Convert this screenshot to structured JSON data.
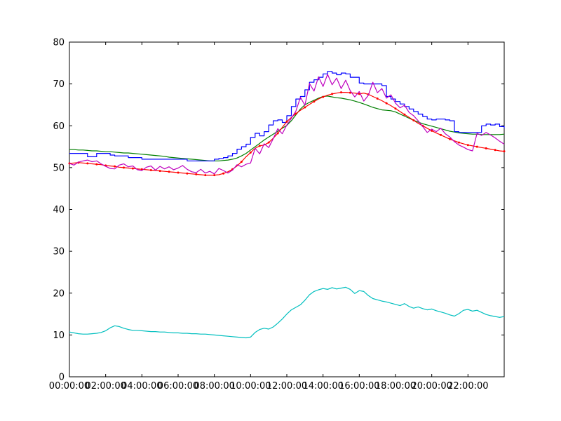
{
  "chart_data": {
    "type": "line",
    "title": "",
    "xlabel": "",
    "ylabel": "",
    "xlim": [
      0,
      24
    ],
    "ylim": [
      0,
      80
    ],
    "grid": false,
    "legend": "none",
    "x_unit": "time of day (HH:MM:SS)",
    "x_start": 0,
    "x_step": 0.25,
    "x_tick_labels": [
      "00:00:00",
      "02:00:00",
      "04:00:00",
      "06:00:00",
      "08:00:00",
      "10:00:00",
      "12:00:00",
      "14:00:00",
      "16:00:00",
      "18:00:00",
      "20:00:00",
      "22:00:00"
    ],
    "x_tick_hours": [
      0,
      2,
      4,
      6,
      8,
      10,
      12,
      14,
      16,
      18,
      20,
      22
    ],
    "x_tick_mark_hours": [
      0,
      2,
      4,
      6,
      8,
      10,
      12,
      14,
      16,
      18,
      20,
      22,
      24
    ],
    "y_ticks": [
      0,
      10,
      20,
      30,
      40,
      50,
      60,
      70,
      80
    ],
    "colors": {
      "axis": "#000000",
      "text": "#000000",
      "plot_bg": "#ffffff",
      "figure_bg": "#ffffff",
      "blue": "#0000ff",
      "green": "#007f00",
      "red": "#ff0000",
      "magenta": "#bf00bf",
      "cyan": "#00bfbf"
    },
    "series": [
      {
        "name": "smooth-green",
        "color": "#007f00",
        "style": "line",
        "values": [
          54.3,
          54.3,
          54.2,
          54.2,
          54.1,
          54.0,
          54.0,
          53.9,
          53.8,
          53.8,
          53.7,
          53.6,
          53.5,
          53.5,
          53.4,
          53.3,
          53.2,
          53.1,
          53.0,
          52.9,
          52.8,
          52.7,
          52.5,
          52.4,
          52.3,
          52.2,
          52.1,
          52.0,
          51.9,
          51.8,
          51.7,
          51.6,
          51.6,
          51.6,
          51.7,
          51.8,
          52.0,
          52.3,
          52.8,
          53.4,
          54.2,
          55.0,
          55.8,
          56.6,
          57.3,
          58.0,
          58.7,
          59.4,
          60.1,
          61.2,
          62.6,
          64.0,
          65.0,
          65.6,
          66.1,
          66.6,
          67.0,
          67.1,
          66.9,
          66.7,
          66.6,
          66.4,
          66.2,
          65.9,
          65.6,
          65.2,
          64.8,
          64.4,
          64.1,
          63.8,
          63.7,
          63.6,
          63.3,
          62.8,
          62.3,
          61.8,
          61.3,
          60.9,
          60.5,
          60.2,
          59.9,
          59.6,
          59.3,
          59.0,
          58.7,
          58.5,
          58.3,
          58.2,
          58.1,
          58.0,
          58.0,
          57.9,
          57.9,
          57.9,
          57.9,
          57.9,
          58.0
        ]
      },
      {
        "name": "stepped-blue",
        "color": "#0000ff",
        "style": "step",
        "values": [
          53.4,
          53.4,
          53.4,
          53.4,
          52.6,
          52.6,
          53.4,
          53.4,
          53.4,
          53.0,
          52.8,
          52.8,
          52.8,
          52.4,
          52.4,
          52.4,
          52.0,
          52.0,
          52.0,
          52.0,
          52.0,
          52.0,
          52.0,
          52.0,
          52.0,
          52.0,
          51.6,
          51.6,
          51.6,
          51.6,
          51.6,
          51.6,
          52.0,
          52.2,
          52.4,
          52.8,
          53.4,
          54.4,
          55.0,
          55.6,
          57.2,
          58.2,
          57.6,
          58.6,
          60.2,
          61.2,
          61.4,
          60.8,
          62.4,
          64.6,
          66.4,
          67.0,
          68.6,
          70.4,
          71.0,
          71.6,
          72.4,
          73.0,
          72.6,
          72.2,
          72.6,
          72.4,
          71.6,
          71.6,
          70.2,
          70.0,
          70.0,
          70.0,
          70.0,
          69.6,
          67.0,
          66.4,
          65.8,
          65.2,
          64.6,
          64.0,
          63.4,
          62.8,
          62.2,
          61.6,
          61.4,
          61.6,
          61.6,
          61.4,
          61.2,
          58.6,
          58.4,
          58.4,
          58.4,
          58.4,
          58.4,
          60.0,
          60.4,
          60.2,
          60.4,
          59.8,
          59.4
        ]
      },
      {
        "name": "smooth-red-markers",
        "color": "#ff0000",
        "style": "line",
        "marker": "dot",
        "values": [
          51.0,
          51.1,
          51.2,
          51.1,
          51.0,
          50.9,
          50.8,
          50.7,
          50.5,
          50.4,
          50.3,
          50.1,
          50.0,
          49.9,
          49.8,
          49.7,
          49.6,
          49.5,
          49.4,
          49.3,
          49.2,
          49.1,
          49.0,
          48.9,
          48.8,
          48.7,
          48.6,
          48.5,
          48.4,
          48.3,
          48.2,
          48.2,
          48.2,
          48.3,
          48.6,
          49.0,
          49.6,
          50.4,
          51.4,
          52.6,
          53.6,
          54.6,
          55.2,
          55.4,
          56.0,
          57.0,
          58.2,
          59.6,
          61.0,
          62.0,
          62.9,
          63.7,
          64.4,
          65.1,
          65.8,
          66.4,
          66.9,
          67.3,
          67.6,
          67.8,
          68.0,
          68.0,
          67.9,
          67.8,
          67.6,
          67.8,
          67.5,
          67.0,
          66.5,
          66.0,
          65.4,
          64.8,
          64.1,
          63.4,
          62.7,
          62.0,
          61.3,
          60.6,
          60.0,
          59.4,
          58.8,
          58.3,
          57.8,
          57.3,
          56.8,
          56.4,
          56.0,
          55.7,
          55.4,
          55.2,
          55.0,
          54.8,
          54.6,
          54.4,
          54.2,
          54.0,
          53.9
        ]
      },
      {
        "name": "noisy-magenta",
        "color": "#bf00bf",
        "style": "line",
        "values": [
          51.0,
          50.6,
          51.3,
          51.6,
          51.8,
          51.4,
          51.6,
          50.9,
          50.3,
          49.8,
          49.7,
          50.6,
          50.9,
          50.2,
          50.4,
          49.5,
          49.3,
          50.1,
          50.4,
          49.4,
          50.3,
          49.7,
          50.2,
          49.5,
          49.9,
          50.5,
          49.6,
          49.0,
          48.8,
          49.6,
          48.7,
          49.1,
          48.5,
          49.8,
          49.3,
          48.7,
          49.4,
          50.7,
          50.2,
          50.8,
          51.1,
          54.6,
          53.3,
          55.7,
          54.8,
          56.9,
          59.3,
          58.1,
          60.2,
          61.8,
          63.5,
          66.8,
          64.9,
          70.1,
          68.3,
          71.7,
          69.4,
          72.3,
          69.8,
          71.4,
          68.9,
          70.9,
          68.4,
          66.9,
          68.2,
          65.9,
          67.3,
          70.4,
          67.9,
          68.9,
          66.6,
          67.4,
          65.4,
          64.3,
          64.9,
          63.2,
          62.4,
          61.2,
          59.8,
          58.4,
          59.2,
          58.6,
          59.4,
          58.1,
          57.3,
          56.2,
          55.4,
          54.9,
          54.3,
          54.0,
          58.2,
          57.7,
          58.4,
          57.8,
          57.1,
          56.3,
          55.6
        ]
      },
      {
        "name": "low-cyan",
        "color": "#00bfbf",
        "style": "line",
        "values": [
          10.7,
          10.5,
          10.3,
          10.2,
          10.2,
          10.3,
          10.4,
          10.6,
          11.0,
          11.7,
          12.2,
          12.0,
          11.6,
          11.3,
          11.1,
          11.1,
          11.0,
          10.9,
          10.8,
          10.8,
          10.7,
          10.7,
          10.6,
          10.5,
          10.5,
          10.4,
          10.4,
          10.3,
          10.3,
          10.2,
          10.2,
          10.1,
          10.0,
          9.9,
          9.8,
          9.7,
          9.6,
          9.5,
          9.4,
          9.3,
          9.5,
          10.6,
          11.3,
          11.6,
          11.4,
          11.9,
          12.8,
          13.8,
          15.0,
          16.0,
          16.6,
          17.2,
          18.3,
          19.6,
          20.4,
          20.8,
          21.1,
          20.9,
          21.3,
          21.0,
          21.2,
          21.4,
          20.9,
          19.9,
          20.6,
          20.4,
          19.4,
          18.7,
          18.4,
          18.1,
          17.9,
          17.6,
          17.3,
          17.0,
          17.5,
          16.8,
          16.4,
          16.7,
          16.3,
          16.0,
          16.2,
          15.8,
          15.5,
          15.2,
          14.8,
          14.5,
          15.1,
          15.9,
          16.1,
          15.7,
          15.9,
          15.4,
          14.9,
          14.6,
          14.4,
          14.2,
          14.4
        ]
      }
    ]
  }
}
